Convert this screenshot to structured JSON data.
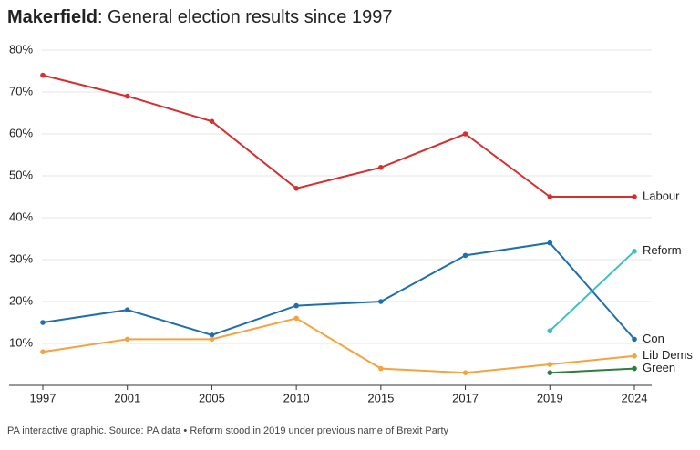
{
  "chart_data": {
    "type": "line",
    "title": {
      "place": "Makerfield",
      "text": ": General election results since 1997"
    },
    "footnote": "PA interactive graphic. Source: PA data • Reform stood in 2019 under previous name of Brexit Party",
    "categories": [
      "1997",
      "2001",
      "2005",
      "2010",
      "2015",
      "2017",
      "2019",
      "2024"
    ],
    "ylim": [
      0,
      80
    ],
    "yticks": [
      {
        "value": 10,
        "label": "10%"
      },
      {
        "value": 20,
        "label": "20%"
      },
      {
        "value": 30,
        "label": "30%"
      },
      {
        "value": 40,
        "label": "40%"
      },
      {
        "value": 50,
        "label": "50%"
      },
      {
        "value": 60,
        "label": "60%"
      },
      {
        "value": 70,
        "label": "70%"
      },
      {
        "value": 80,
        "label": "80%"
      }
    ],
    "grid": true,
    "series": [
      {
        "name": "Labour",
        "color": "#d62f2f",
        "values": [
          74,
          69,
          63,
          47,
          52,
          60,
          45,
          45
        ]
      },
      {
        "name": "Reform",
        "color": "#3cc0c8",
        "values": [
          null,
          null,
          null,
          null,
          null,
          null,
          13,
          32
        ]
      },
      {
        "name": "Con",
        "color": "#1f6fad",
        "values": [
          15,
          18,
          12,
          19,
          20,
          31,
          34,
          11
        ]
      },
      {
        "name": "Lib Dems",
        "color": "#f4a340",
        "values": [
          8,
          11,
          11,
          16,
          4,
          3,
          5,
          7
        ]
      },
      {
        "name": "Green",
        "color": "#2e7d3a",
        "values": [
          null,
          null,
          null,
          null,
          null,
          null,
          3,
          4
        ]
      }
    ]
  }
}
